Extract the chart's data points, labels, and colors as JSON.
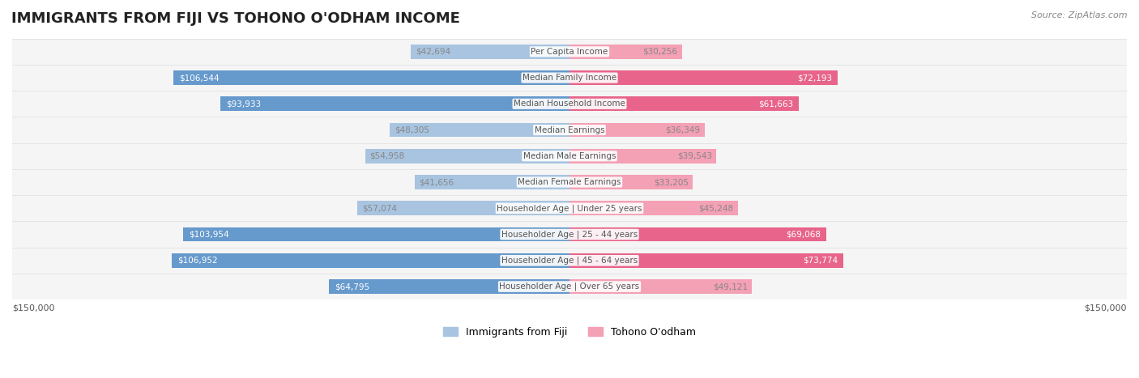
{
  "title": "IMMIGRANTS FROM FIJI VS TOHONO O'ODHAM INCOME",
  "source": "Source: ZipAtlas.com",
  "categories": [
    "Per Capita Income",
    "Median Family Income",
    "Median Household Income",
    "Median Earnings",
    "Median Male Earnings",
    "Median Female Earnings",
    "Householder Age | Under 25 years",
    "Householder Age | 25 - 44 years",
    "Householder Age | 45 - 64 years",
    "Householder Age | Over 65 years"
  ],
  "fiji_values": [
    42694,
    106544,
    93933,
    48305,
    54958,
    41656,
    57074,
    103954,
    106952,
    64795
  ],
  "tohono_values": [
    30256,
    72193,
    61663,
    36349,
    39543,
    33205,
    45248,
    69068,
    73774,
    49121
  ],
  "fiji_labels": [
    "$42,694",
    "$106,544",
    "$93,933",
    "$48,305",
    "$54,958",
    "$41,656",
    "$57,074",
    "$103,954",
    "$106,952",
    "$64,795"
  ],
  "tohono_labels": [
    "$30,256",
    "$72,193",
    "$61,663",
    "$36,349",
    "$39,543",
    "$33,205",
    "$45,248",
    "$69,068",
    "$73,774",
    "$49,121"
  ],
  "fiji_color_light": "#a8c4e0",
  "fiji_color_dark": "#6699cc",
  "tohono_color_light": "#f4a0b5",
  "tohono_color_dark": "#e8648a",
  "fiji_label_light": "#888888",
  "fiji_label_dark": "#ffffff",
  "tohono_label_light": "#888888",
  "tohono_label_dark": "#ffffff",
  "max_value": 150000,
  "background_color": "#ffffff",
  "row_bg_color": "#f0f0f0",
  "legend_fiji": "Immigrants from Fiji",
  "legend_tohono": "Tohono O'odham",
  "xlabel_left": "$150,000",
  "xlabel_right": "$150,000",
  "fiji_dark_threshold": 60000,
  "tohono_dark_threshold": 60000
}
